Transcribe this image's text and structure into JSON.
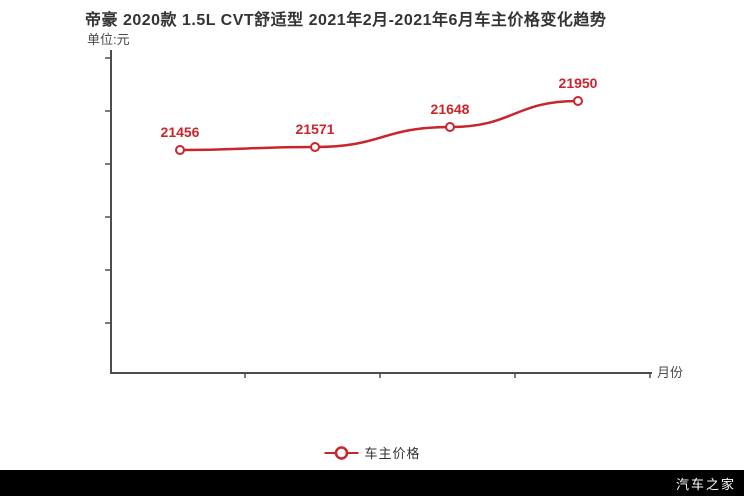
{
  "header": {
    "title": "帝豪 2020款 1.5L CVT舒适型 2021年2月-2021年6月车主价格变化趋势",
    "unit_label": "单位:元",
    "x_axis_label": "月份"
  },
  "legend": {
    "label": "车主价格"
  },
  "watermark": {
    "text": "汽车之家"
  },
  "colors": {
    "accent_red": "#c9252c",
    "axis": "#4d4d4d",
    "title_text": "#333333",
    "watermark_bg": "#000000",
    "watermark_text": "#ffffff"
  },
  "chart_data": {
    "type": "line",
    "title": "帝豪 2020款 1.5L CVT舒适型 2021年2月-2021年6月车主价格变化趋势",
    "ylabel": "单位:元",
    "xlabel": "月份",
    "series": [
      {
        "name": "车主价格",
        "values": [
          21456,
          21571,
          21648,
          21950
        ],
        "labels": [
          "21456",
          "21571",
          "21648",
          "21950"
        ]
      }
    ],
    "x_tick_labels": [],
    "y_tick_labels": [],
    "legend_position": "bottom",
    "grid": false,
    "marker": "open-circle",
    "line_color": "#c9252c"
  }
}
